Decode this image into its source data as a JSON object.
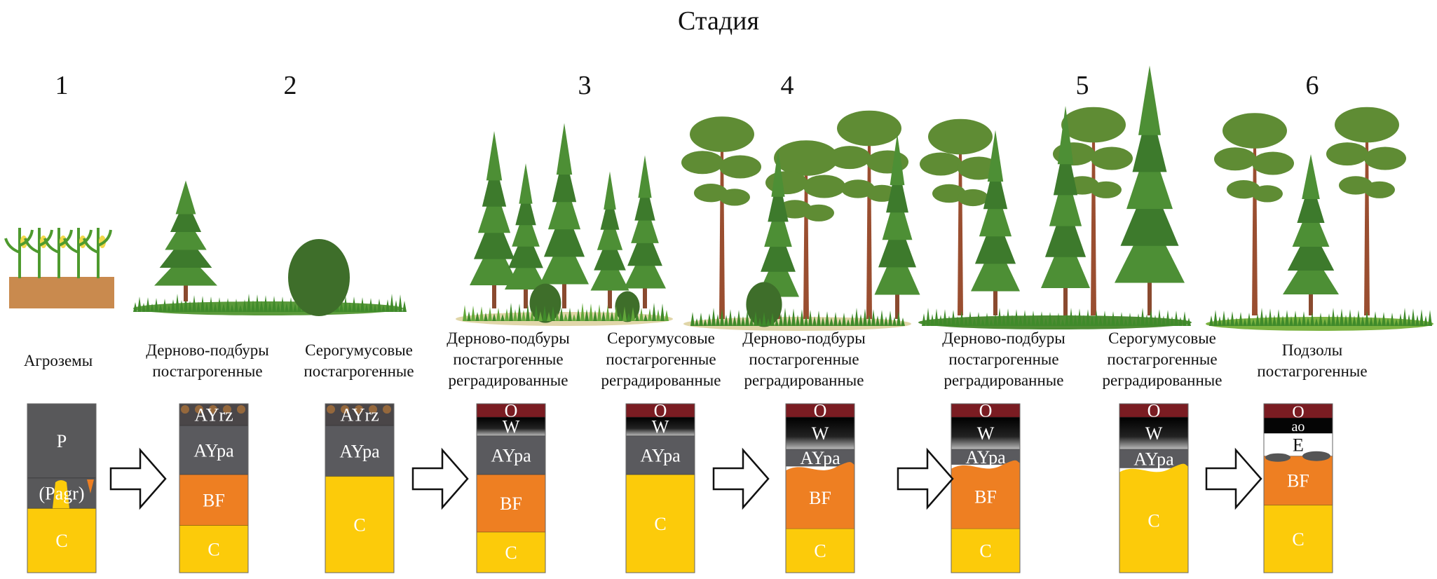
{
  "title": "Стадия",
  "stages": [
    "1",
    "2",
    "3",
    "4",
    "5",
    "6"
  ],
  "profiles": [
    {
      "name": [
        "Агроземы"
      ],
      "layers": [
        "P",
        "(Pagr)",
        "C"
      ]
    },
    {
      "name": [
        "Дерново-подбуры",
        "постагрогенные"
      ],
      "layers": [
        "AYrz",
        "AYpa",
        "BF",
        "C"
      ]
    },
    {
      "name": [
        "Серогумусовые",
        "постагрогенные"
      ],
      "layers": [
        "AYrz",
        "AYpa",
        "C"
      ]
    },
    {
      "name": [
        "Дерново-подбуры",
        "постагрогенные",
        "реградированные"
      ],
      "layers": [
        "O",
        "W",
        "AYpa",
        "BF",
        "C"
      ]
    },
    {
      "name": [
        "Серогумусовые",
        "постагрогенные",
        "реградированные"
      ],
      "layers": [
        "O",
        "W",
        "AYpa",
        "C"
      ]
    },
    {
      "name": [
        "Дерново-подбуры",
        "постагрогенные",
        "реградированные"
      ],
      "layers": [
        "O",
        "W",
        "AYpa",
        "BF",
        "C"
      ]
    },
    {
      "name": [
        "Дерново-подбуры",
        "постагрогенные",
        "реградированные"
      ],
      "layers": [
        "O",
        "W",
        "AYpa",
        "BF",
        "C"
      ]
    },
    {
      "name": [
        "Серогумусовые",
        "постагрогенные",
        "реградированные"
      ],
      "layers": [
        "O",
        "W",
        "AYpa",
        "C"
      ]
    },
    {
      "name": [
        "Подзолы",
        "постагрогенные"
      ],
      "layers": [
        "O",
        "ao",
        "E",
        "BF",
        "C"
      ]
    }
  ],
  "colors": {
    "P": "#58585a",
    "(Pagr)": "#58585a",
    "AYrz": "#4a4648",
    "AYpa": "#5a5a5e",
    "BF": "#ee7f22",
    "C": "#fccb0a",
    "O": "#7a1c22",
    "W": "#111111",
    "ao": "#050505",
    "E": "#ffffff"
  },
  "arrow_icon": "right-arrow-outline"
}
